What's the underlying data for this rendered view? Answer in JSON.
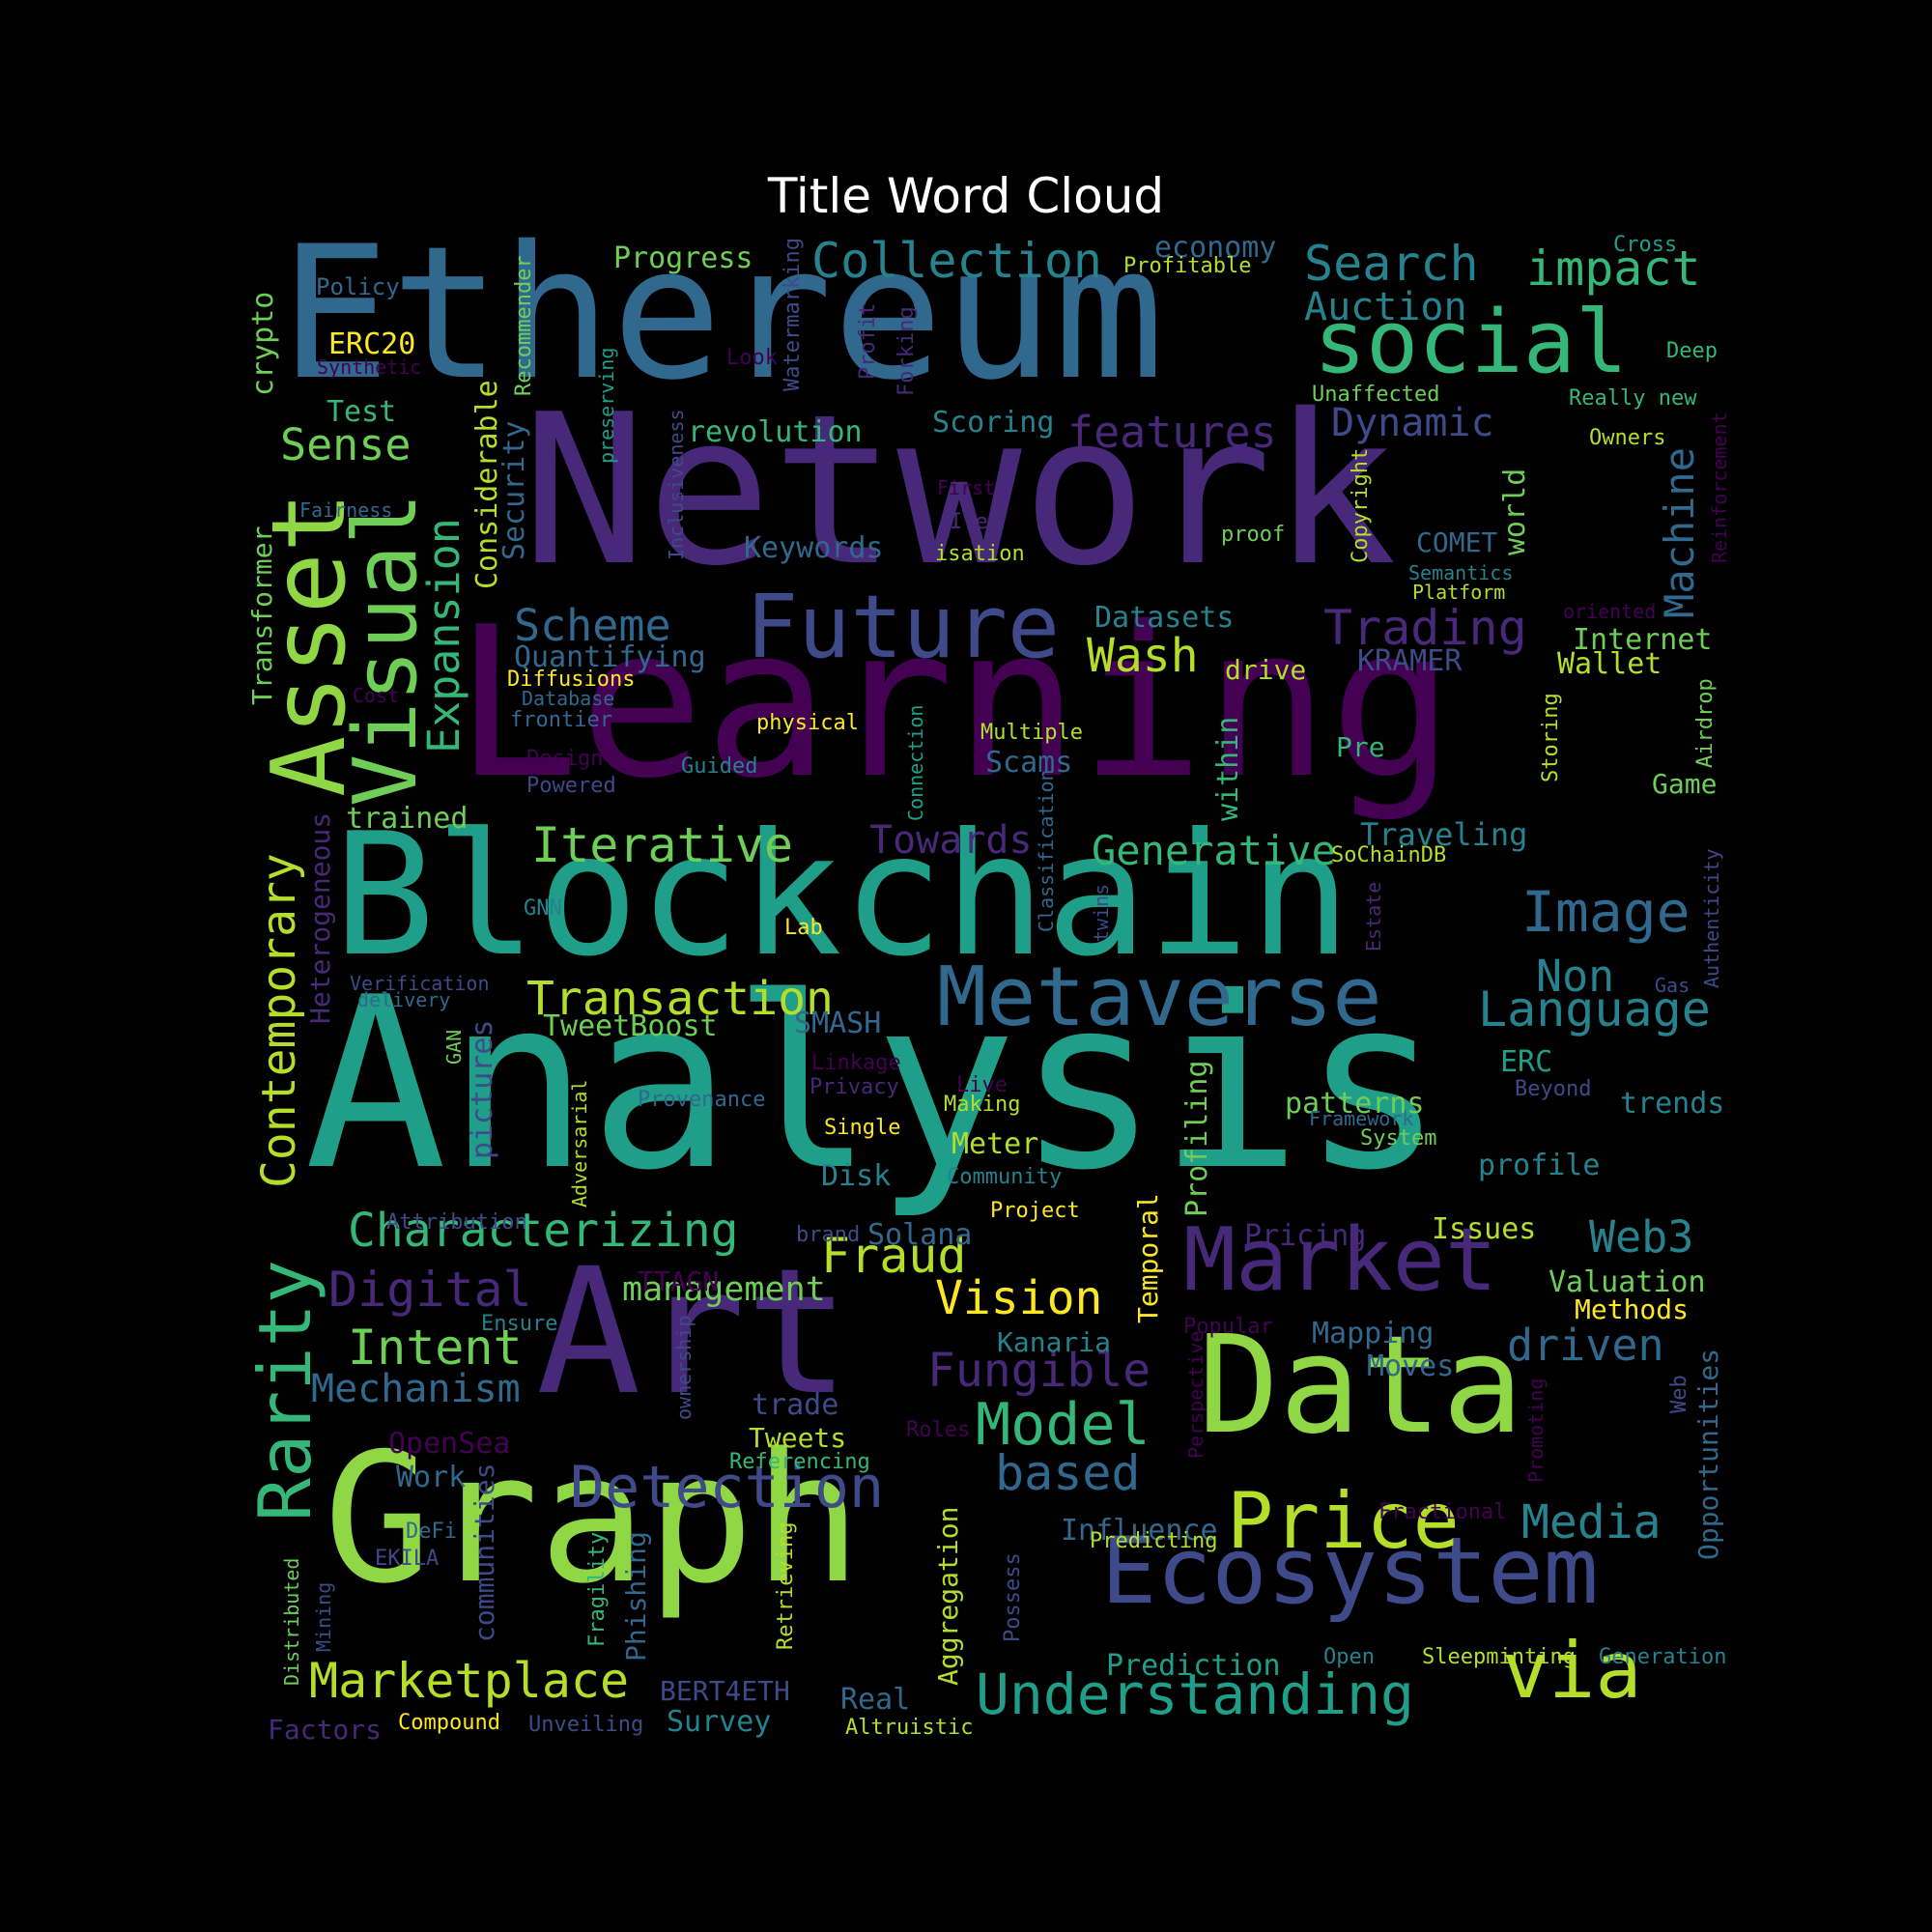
{
  "title": "Title Word Cloud",
  "palette": [
    "#440154",
    "#482878",
    "#3e4a89",
    "#31688e",
    "#26828e",
    "#1f9e89",
    "#35b779",
    "#6ece58",
    "#b5de2b",
    "#fde725"
  ],
  "words": [
    {
      "text": "Ethereum",
      "c": "#31688e"
    },
    {
      "text": "Network",
      "c": "#482878"
    },
    {
      "text": "Learning",
      "c": "#440154"
    },
    {
      "text": "Blockchain",
      "c": "#1f9e89"
    },
    {
      "text": "Analysis",
      "c": "#1f9e89"
    },
    {
      "text": "Art",
      "c": "#482878"
    },
    {
      "text": "Data",
      "c": "#8fd744"
    },
    {
      "text": "Graph",
      "c": "#8fd744"
    },
    {
      "text": "social",
      "c": "#35b779"
    },
    {
      "text": "Asset",
      "c": "#8fd744"
    },
    {
      "text": "Visual",
      "c": "#6ece58"
    },
    {
      "text": "Future",
      "c": "#3e4a89"
    },
    {
      "text": "Metaverse",
      "c": "#31688e"
    },
    {
      "text": "Market",
      "c": "#482878"
    },
    {
      "text": "Ecosystem",
      "c": "#3e4a89"
    },
    {
      "text": "via",
      "c": "#b5de2b"
    },
    {
      "text": "Price",
      "c": "#b5de2b"
    },
    {
      "text": "Rarity",
      "c": "#35b779"
    },
    {
      "text": "Detection",
      "c": "#3e4a89"
    },
    {
      "text": "Understanding",
      "c": "#1f9e89"
    },
    {
      "text": "Marketplace",
      "c": "#b5de2b"
    },
    {
      "text": "Model",
      "c": "#35b779"
    },
    {
      "text": "Image",
      "c": "#31688e"
    },
    {
      "text": "Language",
      "c": "#26828e"
    },
    {
      "text": "Transaction",
      "c": "#b5de2b"
    },
    {
      "text": "Characterizing",
      "c": "#35b779"
    },
    {
      "text": "Contemporary",
      "c": "#b5de2b"
    },
    {
      "text": "Iterative",
      "c": "#6ece58"
    },
    {
      "text": "Generative",
      "c": "#35b779"
    },
    {
      "text": "Search",
      "c": "#26828e"
    },
    {
      "text": "impact",
      "c": "#35b779"
    },
    {
      "text": "Collection",
      "c": "#26828e"
    },
    {
      "text": "Auction",
      "c": "#26828e"
    },
    {
      "text": "features",
      "c": "#482878"
    },
    {
      "text": "Sense",
      "c": "#6ece58"
    },
    {
      "text": "Expansion",
      "c": "#35b779"
    },
    {
      "text": "Scheme",
      "c": "#31688e"
    },
    {
      "text": "Trading",
      "c": "#482878"
    },
    {
      "text": "Wash",
      "c": "#b5de2b"
    },
    {
      "text": "Machine",
      "c": "#31688e"
    },
    {
      "text": "Digital",
      "c": "#482878"
    },
    {
      "text": "Intent",
      "c": "#6ece58"
    },
    {
      "text": "Mechanism",
      "c": "#31688e"
    },
    {
      "text": "Fraud",
      "c": "#b5de2b"
    },
    {
      "text": "Vision",
      "c": "#fde725"
    },
    {
      "text": "management",
      "c": "#6ece58"
    },
    {
      "text": "Fungible",
      "c": "#482878"
    },
    {
      "text": "driven",
      "c": "#31688e"
    },
    {
      "text": "Web3",
      "c": "#26828e"
    },
    {
      "text": "Media",
      "c": "#26828e"
    },
    {
      "text": "based",
      "c": "#31688e"
    },
    {
      "text": "Non",
      "c": "#26828e"
    },
    {
      "text": "Towards",
      "c": "#482878"
    },
    {
      "text": "Dynamic",
      "c": "#3e4a89"
    },
    {
      "text": "Progress",
      "c": "#6ece58"
    },
    {
      "text": "economy",
      "c": "#31688e"
    },
    {
      "text": "Policy",
      "c": "#31688e"
    },
    {
      "text": "ERC20",
      "c": "#fde725"
    },
    {
      "text": "Synthetic",
      "c": "#440154"
    },
    {
      "text": "Test",
      "c": "#35b779"
    },
    {
      "text": "crypto",
      "c": "#6ece58"
    },
    {
      "text": "Recommender",
      "c": "#6ece58"
    },
    {
      "text": "Watermarking",
      "c": "#3e4a89"
    },
    {
      "text": "Profit",
      "c": "#482878"
    },
    {
      "text": "Forking",
      "c": "#482878"
    },
    {
      "text": "Look",
      "c": "#440154"
    },
    {
      "text": "preserving",
      "c": "#1f9e89"
    },
    {
      "text": "revolution",
      "c": "#35b779"
    },
    {
      "text": "Scoring",
      "c": "#26828e"
    },
    {
      "text": "Profitable",
      "c": "#b5de2b"
    },
    {
      "text": "Cross",
      "c": "#1f9e89"
    },
    {
      "text": "Deep",
      "c": "#35b779"
    },
    {
      "text": "Unaffected",
      "c": "#6ece58"
    },
    {
      "text": "Really new",
      "c": "#35b779"
    },
    {
      "text": "Owners",
      "c": "#b5de2b"
    },
    {
      "text": "Reinforcement",
      "c": "#440154"
    },
    {
      "text": "Security",
      "c": "#31688e"
    },
    {
      "text": "Considerable",
      "c": "#b5de2b"
    },
    {
      "text": "Inclusiveness",
      "c": "#3e4a89"
    },
    {
      "text": "Fairness",
      "c": "#31688e"
    },
    {
      "text": "Transformer",
      "c": "#6ece58"
    },
    {
      "text": "First",
      "c": "#440154"
    },
    {
      "text": "Item",
      "c": "#482878"
    },
    {
      "text": "isation",
      "c": "#b5de2b"
    },
    {
      "text": "Keywords",
      "c": "#31688e"
    },
    {
      "text": "Copyright",
      "c": "#b5de2b"
    },
    {
      "text": "proof",
      "c": "#6ece58"
    },
    {
      "text": "COMET",
      "c": "#31688e"
    },
    {
      "text": "world",
      "c": "#6ece58"
    },
    {
      "text": "Semantics",
      "c": "#26828e"
    },
    {
      "text": "Platform",
      "c": "#b5de2b"
    },
    {
      "text": "oriented",
      "c": "#440154"
    },
    {
      "text": "Internet",
      "c": "#6ece58"
    },
    {
      "text": "Wallet",
      "c": "#b5de2b"
    },
    {
      "text": "Datasets",
      "c": "#26828e"
    },
    {
      "text": "KRAMER",
      "c": "#3e4a89"
    },
    {
      "text": "drive",
      "c": "#b5de2b"
    },
    {
      "text": "Quantifying",
      "c": "#31688e"
    },
    {
      "text": "Diffusions",
      "c": "#fde725"
    },
    {
      "text": "Database",
      "c": "#31688e"
    },
    {
      "text": "frontier",
      "c": "#31688e"
    },
    {
      "text": "Cost",
      "c": "#440154"
    },
    {
      "text": "physical",
      "c": "#fde725"
    },
    {
      "text": "Design",
      "c": "#440154"
    },
    {
      "text": "Powered",
      "c": "#3e4a89"
    },
    {
      "text": "Guided",
      "c": "#26828e"
    },
    {
      "text": "Connection",
      "c": "#1f9e89"
    },
    {
      "text": "Multiple",
      "c": "#b5de2b"
    },
    {
      "text": "Scams",
      "c": "#31688e"
    },
    {
      "text": "within",
      "c": "#35b779"
    },
    {
      "text": "Pre",
      "c": "#35b779"
    },
    {
      "text": "Storing",
      "c": "#b5de2b"
    },
    {
      "text": "Airdrop",
      "c": "#6ece58"
    },
    {
      "text": "Game",
      "c": "#6ece58"
    },
    {
      "text": "trained",
      "c": "#6ece58"
    },
    {
      "text": "Heterogeneous",
      "c": "#482878"
    },
    {
      "text": "Classification",
      "c": "#31688e"
    },
    {
      "text": "Traveling",
      "c": "#26828e"
    },
    {
      "text": "SoChainDB",
      "c": "#b5de2b"
    },
    {
      "text": "GNN",
      "c": "#26828e"
    },
    {
      "text": "Lab",
      "c": "#fde725"
    },
    {
      "text": "Estate",
      "c": "#482878"
    },
    {
      "text": "twins",
      "c": "#3e4a89"
    },
    {
      "text": "Authenticity",
      "c": "#3e4a89"
    },
    {
      "text": "Gas",
      "c": "#3e4a89"
    },
    {
      "text": "Verification",
      "c": "#3e4a89"
    },
    {
      "text": "delivery",
      "c": "#31688e"
    },
    {
      "text": "TweetBoost",
      "c": "#6ece58"
    },
    {
      "text": "SMASH",
      "c": "#31688e"
    },
    {
      "text": "GAN",
      "c": "#6ece58"
    },
    {
      "text": "pictures",
      "c": "#3e4a89"
    },
    {
      "text": "Linkage",
      "c": "#440154"
    },
    {
      "text": "Privacy",
      "c": "#482878"
    },
    {
      "text": "Provenance",
      "c": "#31688e"
    },
    {
      "text": "Live",
      "c": "#440154"
    },
    {
      "text": "Making",
      "c": "#b5de2b"
    },
    {
      "text": "Adversarial",
      "c": "#b5de2b"
    },
    {
      "text": "Single",
      "c": "#fde725"
    },
    {
      "text": "Meter",
      "c": "#b5de2b"
    },
    {
      "text": "Disk",
      "c": "#26828e"
    },
    {
      "text": "Community",
      "c": "#26828e"
    },
    {
      "text": "Project",
      "c": "#fde725"
    },
    {
      "text": "Profiling",
      "c": "#6ece58"
    },
    {
      "text": "patterns",
      "c": "#6ece58"
    },
    {
      "text": "Framework",
      "c": "#31688e"
    },
    {
      "text": "System",
      "c": "#6ece58"
    },
    {
      "text": "ERC",
      "c": "#1f9e89"
    },
    {
      "text": "Beyond",
      "c": "#3e4a89"
    },
    {
      "text": "trends",
      "c": "#26828e"
    },
    {
      "text": "profile",
      "c": "#26828e"
    },
    {
      "text": "Attribution",
      "c": "#3e4a89"
    },
    {
      "text": "brand",
      "c": "#3e4a89"
    },
    {
      "text": "Solana",
      "c": "#31688e"
    },
    {
      "text": "TTAGN",
      "c": "#440154"
    },
    {
      "text": "Temporal",
      "c": "#fde725"
    },
    {
      "text": "Pricing",
      "c": "#482878"
    },
    {
      "text": "Issues",
      "c": "#b5de2b"
    },
    {
      "text": "Valuation",
      "c": "#6ece58"
    },
    {
      "text": "Methods",
      "c": "#fde725"
    },
    {
      "text": "Ensure",
      "c": "#26828e"
    },
    {
      "text": "Kanaria",
      "c": "#26828e"
    },
    {
      "text": "Popular",
      "c": "#440154"
    },
    {
      "text": "Mapping",
      "c": "#31688e"
    },
    {
      "text": "Moves",
      "c": "#31688e"
    },
    {
      "text": "ownership",
      "c": "#3e4a89"
    },
    {
      "text": "trade",
      "c": "#3e4a89"
    },
    {
      "text": "Perspective",
      "c": "#440154"
    },
    {
      "text": "Web",
      "c": "#3e4a89"
    },
    {
      "text": "Opportunities",
      "c": "#31688e"
    },
    {
      "text": "OpenSea",
      "c": "#440154"
    },
    {
      "text": "Work",
      "c": "#31688e"
    },
    {
      "text": "Tweets",
      "c": "#b5de2b"
    },
    {
      "text": "Roles",
      "c": "#440154"
    },
    {
      "text": "Referencing",
      "c": "#35b779"
    },
    {
      "text": "Promoting",
      "c": "#440154"
    },
    {
      "text": "communities",
      "c": "#3e4a89"
    },
    {
      "text": "DeFi",
      "c": "#31688e"
    },
    {
      "text": "EKILA",
      "c": "#3e4a89"
    },
    {
      "text": "Influence",
      "c": "#31688e"
    },
    {
      "text": "Fractional",
      "c": "#440154"
    },
    {
      "text": "Predicting",
      "c": "#b5de2b"
    },
    {
      "text": "Distributed",
      "c": "#6ece58"
    },
    {
      "text": "Mining",
      "c": "#3e4a89"
    },
    {
      "text": "Fragility",
      "c": "#35b779"
    },
    {
      "text": "Phishing",
      "c": "#31688e"
    },
    {
      "text": "Retrieving",
      "c": "#b5de2b"
    },
    {
      "text": "Aggregation",
      "c": "#b5de2b"
    },
    {
      "text": "Possess",
      "c": "#3e4a89"
    },
    {
      "text": "Prediction",
      "c": "#1f9e89"
    },
    {
      "text": "Open",
      "c": "#26828e"
    },
    {
      "text": "Sleepminting",
      "c": "#b5de2b"
    },
    {
      "text": "Generation",
      "c": "#26828e"
    },
    {
      "text": "BERT4ETH",
      "c": "#3e4a89"
    },
    {
      "text": "Real",
      "c": "#31688e"
    },
    {
      "text": "Survey",
      "c": "#26828e"
    },
    {
      "text": "Factors",
      "c": "#482878"
    },
    {
      "text": "Compound",
      "c": "#fde725"
    },
    {
      "text": "Unveiling",
      "c": "#3e4a89"
    },
    {
      "text": "Altruistic",
      "c": "#b5de2b"
    }
  ]
}
